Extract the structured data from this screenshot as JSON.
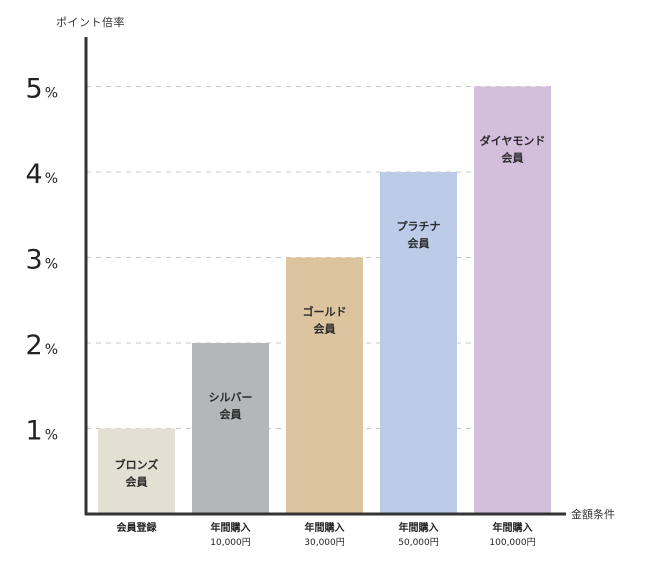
{
  "chart_data": {
    "type": "bar",
    "ylabel": "ポイント倍率",
    "xlabel": "金額条件",
    "ylim": [
      0,
      5.5
    ],
    "yticks": [
      {
        "value": 1,
        "num": "1",
        "unit": "%"
      },
      {
        "value": 2,
        "num": "2",
        "unit": "%"
      },
      {
        "value": 3,
        "num": "3",
        "unit": "%"
      },
      {
        "value": 4,
        "num": "4",
        "unit": "%"
      },
      {
        "value": 5,
        "num": "5",
        "unit": "%"
      }
    ],
    "grid": true,
    "categories": [
      {
        "line1": "会員登録",
        "line2": ""
      },
      {
        "line1": "年間購入",
        "line2": "10,000円"
      },
      {
        "line1": "年間購入",
        "line2": "30,000円"
      },
      {
        "line1": "年間購入",
        "line2": "50,000円"
      },
      {
        "line1": "年間購入",
        "line2": "100,000円"
      }
    ],
    "values": [
      1,
      2,
      3,
      4,
      5
    ],
    "bar_labels": [
      {
        "line1": "ブロンズ",
        "line2": "会員"
      },
      {
        "line1": "シルバー",
        "line2": "会員"
      },
      {
        "line1": "ゴールド",
        "line2": "会員"
      },
      {
        "line1": "プラチナ",
        "line2": "会員"
      },
      {
        "line1": "ダイヤモンド",
        "line2": "会員"
      }
    ],
    "colors": [
      "#e2dfd3",
      "#b3b7b7",
      "#dcc49e",
      "#bccce8",
      "#d3bedb"
    ],
    "axis_color": "#333333",
    "grid_color": "#c8c8c8"
  }
}
